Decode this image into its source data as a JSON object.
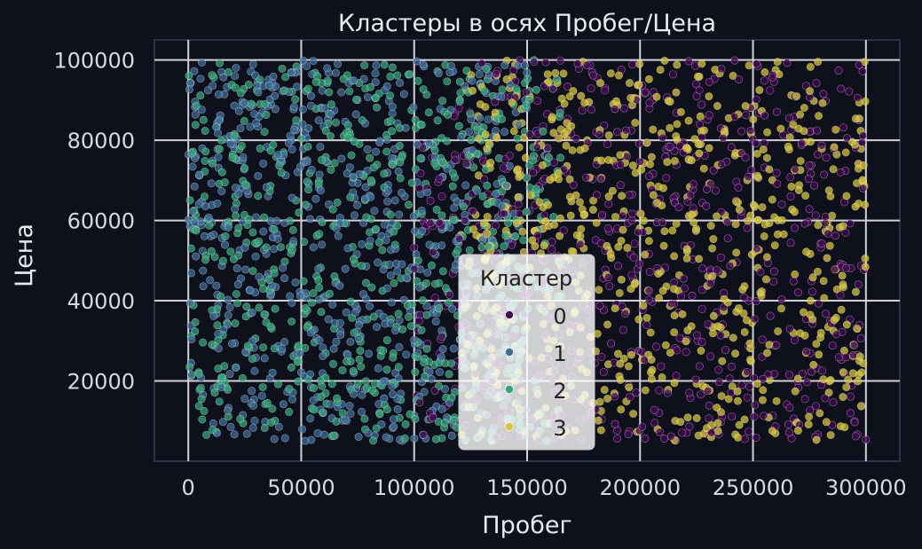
{
  "chart_data": {
    "type": "scatter",
    "title": "Кластеры в осях Пробег/Цена",
    "xlabel": "Пробег",
    "ylabel": "Цена",
    "xlim": [
      -15000,
      315000
    ],
    "ylim": [
      0,
      105000
    ],
    "xticks": [
      "0",
      "50000",
      "100000",
      "150000",
      "200000",
      "250000",
      "300000"
    ],
    "yticks": [
      "20000",
      "40000",
      "60000",
      "80000",
      "100000"
    ],
    "grid": true,
    "legend": {
      "title": "Кластер",
      "placement": "bottom-center",
      "entries": [
        "0",
        "1",
        "2",
        "3"
      ]
    },
    "series": [
      {
        "name": "0",
        "color": "#440154",
        "x_range": [
          100000,
          300000
        ],
        "y_range": [
          5000,
          100000
        ],
        "count": 700
      },
      {
        "name": "1",
        "color": "#3b6e9a",
        "x_range": [
          0,
          150000
        ],
        "y_range": [
          5000,
          100000
        ],
        "count": 700
      },
      {
        "name": "2",
        "color": "#2fa57a",
        "x_range": [
          0,
          165000
        ],
        "y_range": [
          5000,
          100000
        ],
        "count": 700
      },
      {
        "name": "3",
        "color": "#d7c532",
        "x_range": [
          120000,
          300000
        ],
        "y_range": [
          5000,
          100000
        ],
        "count": 700
      }
    ]
  }
}
